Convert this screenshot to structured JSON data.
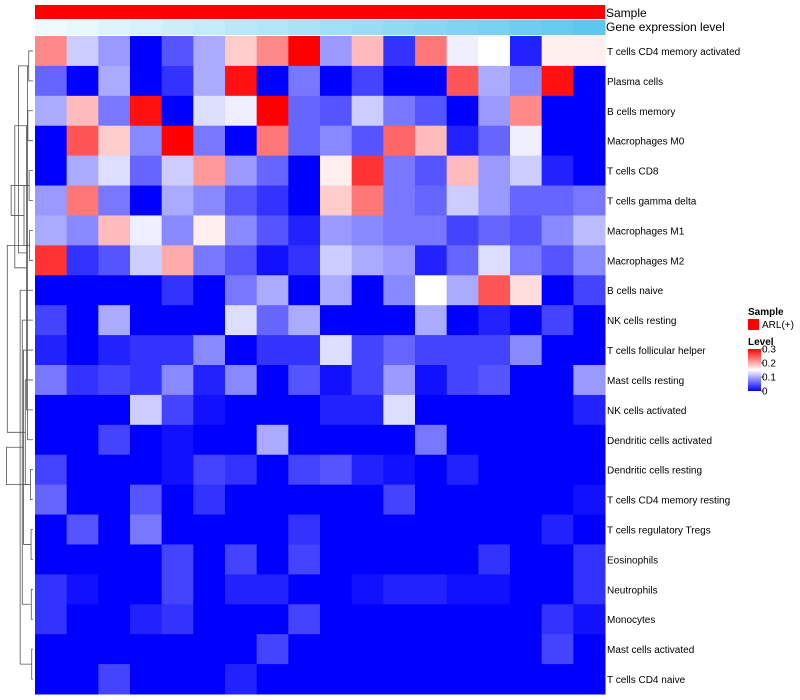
{
  "chart_data": {
    "type": "heatmap",
    "title": "",
    "annotation_rows": [
      {
        "label": "Sample",
        "kind": "categorical",
        "colors": [
          "#ff0000"
        ]
      },
      {
        "label": "Gene expression level",
        "kind": "gradient",
        "colors": [
          "#ffffff",
          "#5cc8f0"
        ]
      }
    ],
    "rows": [
      "T cells CD4 memory activated",
      "Plasma cells",
      "B cells memory",
      "Macrophages M0",
      "T cells CD8",
      "T cells gamma delta",
      "Macrophages M1",
      "Macrophages M2",
      "B cells naive",
      "NK cells resting",
      "T cells follicular helper",
      "Mast cells resting",
      "NK cells activated",
      "Dendritic cells activated",
      "Dendritic cells resting",
      "T cells CD4 memory resting",
      "T cells regulatory  Tregs",
      "Eosinophils",
      "Neutrophils",
      "Monocytes",
      "Mast cells activated",
      "T cells CD4 naive"
    ],
    "n_columns": 18,
    "values": [
      [
        0.22,
        0.12,
        0.09,
        0.0,
        0.05,
        0.1,
        0.18,
        0.22,
        0.3,
        0.09,
        0.19,
        0.03,
        0.23,
        0.14,
        0.15,
        0.02,
        0.16,
        0.16
      ],
      [
        0.06,
        0.0,
        0.1,
        0.0,
        0.03,
        0.1,
        0.29,
        0.0,
        0.07,
        0.0,
        0.04,
        0.0,
        0.0,
        0.25,
        0.1,
        0.08,
        0.29,
        0.0
      ],
      [
        0.1,
        0.19,
        0.07,
        0.29,
        0.0,
        0.13,
        0.14,
        0.3,
        0.06,
        0.05,
        0.12,
        0.07,
        0.05,
        0.0,
        0.09,
        0.22,
        0.0,
        0.0
      ],
      [
        0.0,
        0.25,
        0.18,
        0.08,
        0.3,
        0.07,
        0.0,
        0.23,
        0.06,
        0.08,
        0.05,
        0.24,
        0.19,
        0.02,
        0.06,
        0.14,
        0.0,
        0.0
      ],
      [
        0.0,
        0.1,
        0.13,
        0.06,
        0.12,
        0.21,
        0.09,
        0.06,
        0.0,
        0.16,
        0.27,
        0.07,
        0.05,
        0.19,
        0.09,
        0.12,
        0.02,
        0.0
      ],
      [
        0.09,
        0.23,
        0.07,
        0.0,
        0.1,
        0.08,
        0.05,
        0.03,
        0.0,
        0.18,
        0.23,
        0.07,
        0.06,
        0.12,
        0.09,
        0.06,
        0.06,
        0.07
      ],
      [
        0.1,
        0.08,
        0.19,
        0.14,
        0.08,
        0.16,
        0.08,
        0.05,
        0.02,
        0.09,
        0.08,
        0.07,
        0.07,
        0.04,
        0.06,
        0.05,
        0.08,
        0.11
      ],
      [
        0.27,
        0.03,
        0.05,
        0.12,
        0.2,
        0.07,
        0.05,
        0.01,
        0.03,
        0.12,
        0.1,
        0.09,
        0.02,
        0.06,
        0.13,
        0.07,
        0.05,
        0.08
      ],
      [
        0.0,
        0.0,
        0.0,
        0.0,
        0.03,
        0.0,
        0.07,
        0.1,
        0.0,
        0.1,
        0.0,
        0.08,
        0.15,
        0.1,
        0.25,
        0.17,
        0.0,
        0.04
      ],
      [
        0.04,
        0.0,
        0.1,
        0.0,
        0.0,
        0.0,
        0.13,
        0.06,
        0.1,
        0.0,
        0.0,
        0.0,
        0.1,
        0.0,
        0.02,
        0.0,
        0.04,
        0.0
      ],
      [
        0.02,
        0.0,
        0.02,
        0.03,
        0.03,
        0.08,
        0.0,
        0.03,
        0.03,
        0.13,
        0.04,
        0.06,
        0.04,
        0.04,
        0.04,
        0.08,
        0.0,
        0.0
      ],
      [
        0.07,
        0.03,
        0.04,
        0.03,
        0.08,
        0.02,
        0.08,
        0.0,
        0.05,
        0.01,
        0.04,
        0.09,
        0.01,
        0.04,
        0.05,
        0.0,
        0.0,
        0.09
      ],
      [
        0.0,
        0.0,
        0.0,
        0.12,
        0.04,
        0.01,
        0.0,
        0.0,
        0.0,
        0.02,
        0.02,
        0.13,
        0.0,
        0.0,
        0.0,
        0.0,
        0.0,
        0.02
      ],
      [
        0.0,
        0.0,
        0.04,
        0.0,
        0.01,
        0.0,
        0.0,
        0.1,
        0.0,
        0.0,
        0.0,
        0.0,
        0.07,
        0.0,
        0.0,
        0.0,
        0.0,
        0.0
      ],
      [
        0.04,
        0.0,
        0.0,
        0.0,
        0.01,
        0.04,
        0.03,
        0.0,
        0.04,
        0.05,
        0.02,
        0.01,
        0.0,
        0.02,
        0.0,
        0.0,
        0.0,
        0.0
      ],
      [
        0.06,
        0.0,
        0.0,
        0.05,
        0.0,
        0.03,
        0.0,
        0.0,
        0.0,
        0.0,
        0.0,
        0.04,
        0.0,
        0.0,
        0.0,
        0.0,
        0.0,
        0.01
      ],
      [
        0.0,
        0.05,
        0.0,
        0.07,
        0.0,
        0.0,
        0.0,
        0.0,
        0.03,
        0.0,
        0.0,
        0.0,
        0.0,
        0.0,
        0.0,
        0.0,
        0.02,
        0.0
      ],
      [
        0.0,
        0.0,
        0.0,
        0.0,
        0.04,
        0.0,
        0.04,
        0.0,
        0.04,
        0.0,
        0.0,
        0.0,
        0.0,
        0.0,
        0.03,
        0.0,
        0.0,
        0.03
      ],
      [
        0.03,
        0.01,
        0.0,
        0.0,
        0.04,
        0.0,
        0.02,
        0.02,
        0.0,
        0.0,
        0.01,
        0.02,
        0.02,
        0.01,
        0.01,
        0.0,
        0.0,
        0.03
      ],
      [
        0.03,
        0.0,
        0.0,
        0.02,
        0.03,
        0.0,
        0.0,
        0.0,
        0.04,
        0.0,
        0.0,
        0.0,
        0.0,
        0.0,
        0.0,
        0.0,
        0.03,
        0.01
      ],
      [
        0.0,
        0.0,
        0.0,
        0.0,
        0.0,
        0.0,
        0.0,
        0.04,
        0.0,
        0.0,
        0.0,
        0.0,
        0.0,
        0.0,
        0.0,
        0.0,
        0.04,
        0.0
      ],
      [
        0.0,
        0.0,
        0.04,
        0.0,
        0.0,
        0.0,
        0.02,
        0.0,
        0.0,
        0.0,
        0.0,
        0.0,
        0.0,
        0.0,
        0.0,
        0.0,
        0.0,
        0.0
      ]
    ],
    "color_scale": {
      "min": 0,
      "mid": 0.15,
      "max": 0.3,
      "low": "#0000ff",
      "mid_color": "#ffffff",
      "high": "#ff0000"
    },
    "dendrogram": {
      "side": "left"
    },
    "legend": {
      "sample_title": "Sample",
      "sample_entries": [
        {
          "label": "ARL(+)",
          "color": "#ff0000"
        }
      ],
      "level_title": "Level",
      "level_ticks": [
        "0.3",
        "0.2",
        "0.1",
        "0"
      ],
      "level_tick_values": [
        0.3,
        0.2,
        0.1,
        0
      ],
      "placement": "right"
    }
  }
}
